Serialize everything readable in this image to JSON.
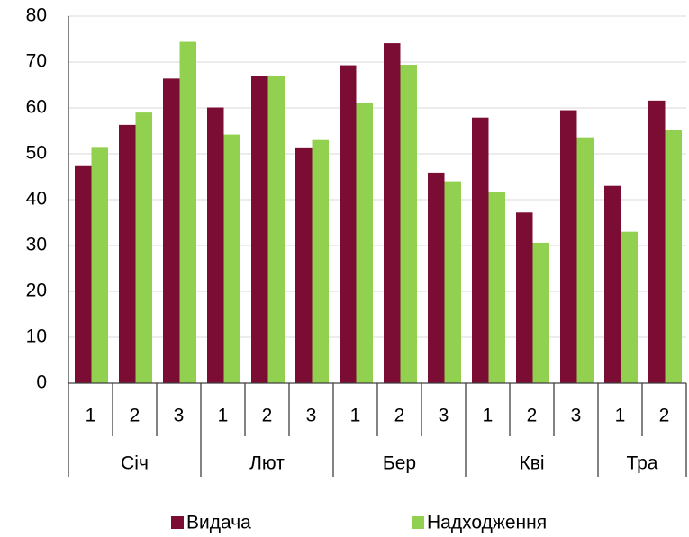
{
  "chart_data": {
    "type": "bar",
    "categories": [
      {
        "group": "Січ",
        "label": "1"
      },
      {
        "group": "Січ",
        "label": "2"
      },
      {
        "group": "Січ",
        "label": "3"
      },
      {
        "group": "Лют",
        "label": "1"
      },
      {
        "group": "Лют",
        "label": "2"
      },
      {
        "group": "Лют",
        "label": "3"
      },
      {
        "group": "Бер",
        "label": "1"
      },
      {
        "group": "Бер",
        "label": "2"
      },
      {
        "group": "Бер",
        "label": "3"
      },
      {
        "group": "Кві",
        "label": "1"
      },
      {
        "group": "Кві",
        "label": "2"
      },
      {
        "group": "Кві",
        "label": "3"
      },
      {
        "group": "Тра",
        "label": "1"
      },
      {
        "group": "Тра",
        "label": "2"
      }
    ],
    "series": [
      {
        "name": "Видача",
        "color": "#7b0c34",
        "values": [
          47.5,
          56.3,
          66.4,
          60.1,
          66.9,
          51.4,
          69.3,
          74.1,
          45.9,
          57.9,
          37.2,
          59.5,
          43,
          61.6
        ]
      },
      {
        "name": "Надходження",
        "color": "#92d050",
        "values": [
          51.5,
          59,
          74.4,
          54.2,
          66.9,
          53,
          61,
          69.4,
          44,
          41.6,
          30.6,
          53.6,
          33,
          55.2
        ]
      }
    ],
    "ylim": [
      0,
      80
    ],
    "yticks": [
      0,
      10,
      20,
      30,
      40,
      50,
      60,
      70,
      80
    ],
    "grid": true,
    "legend": "bottom"
  }
}
